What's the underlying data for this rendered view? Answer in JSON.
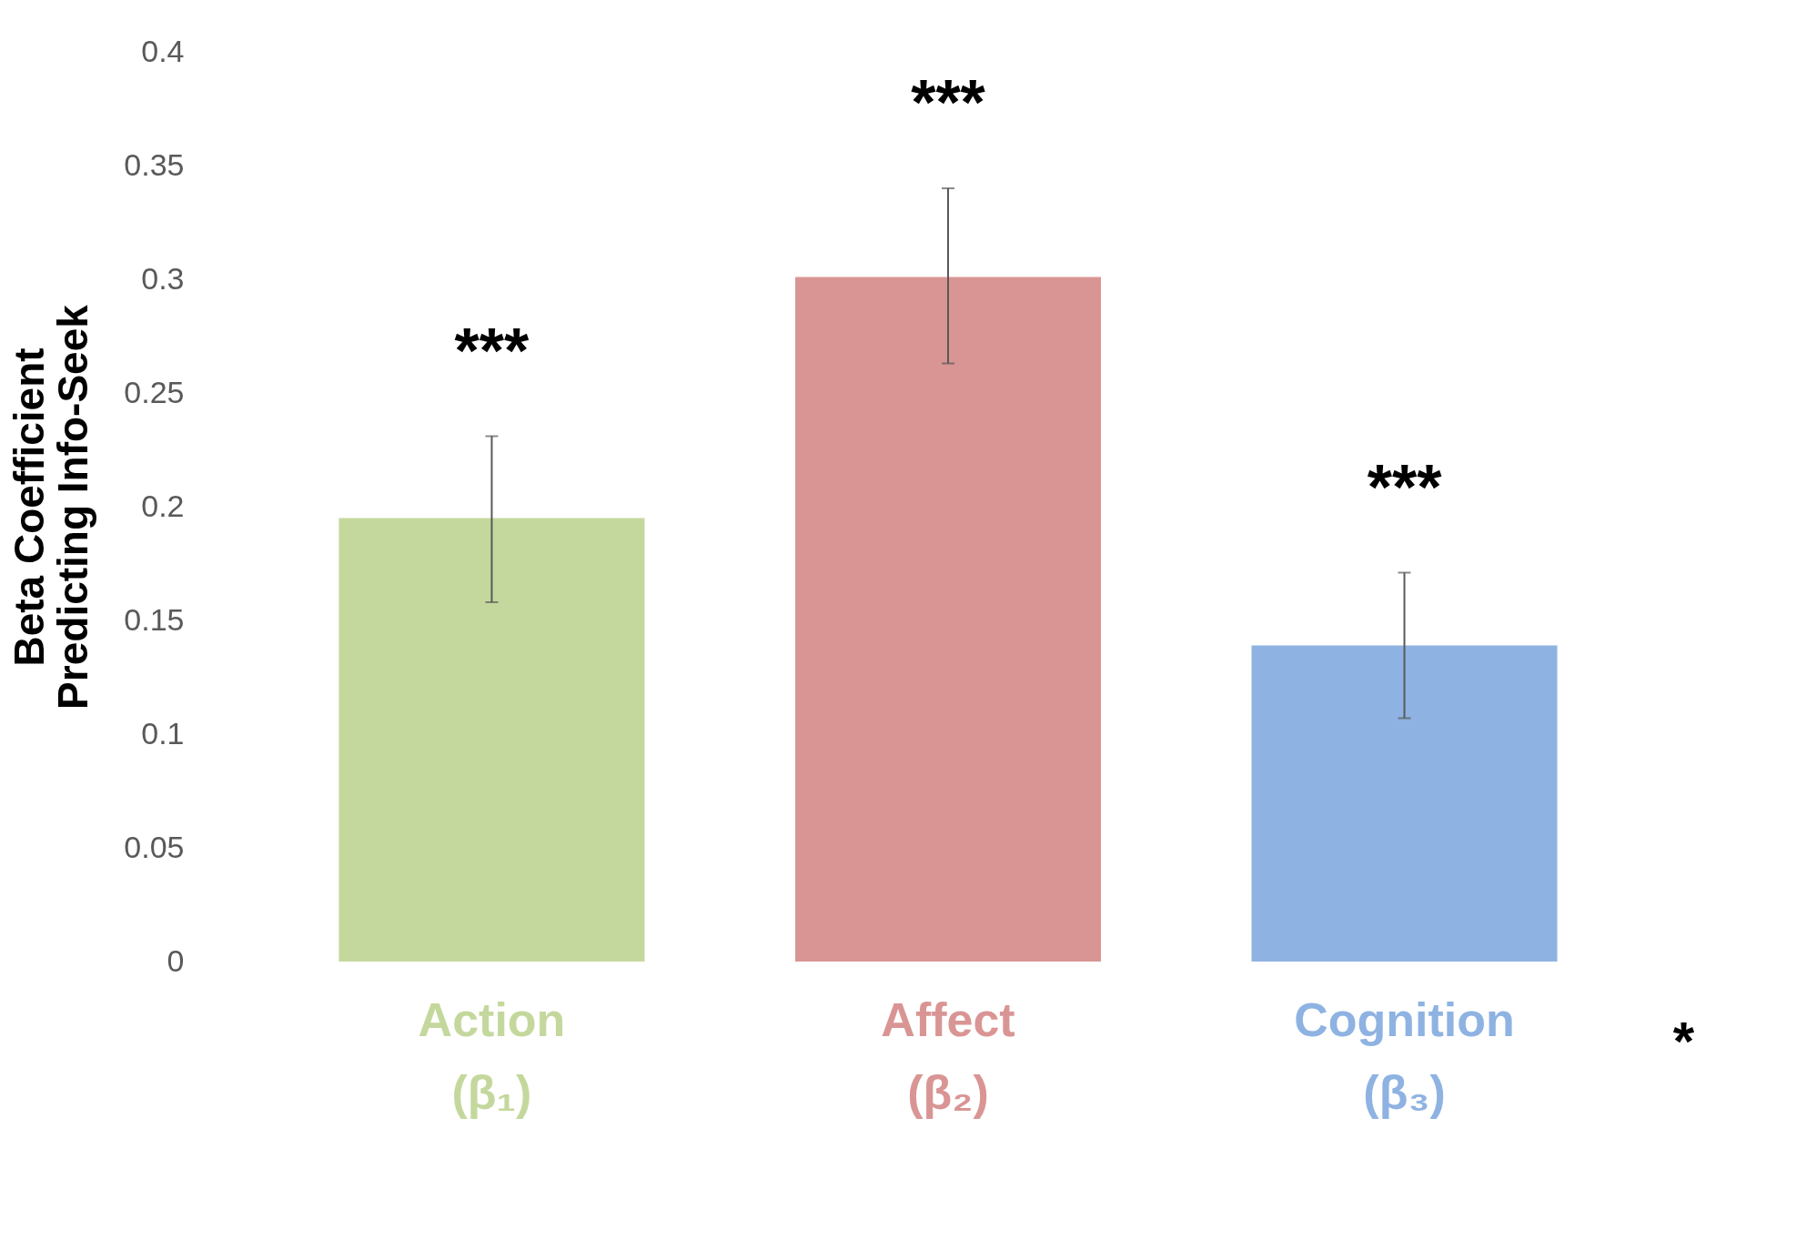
{
  "chart_data": {
    "type": "bar",
    "ylabel": "Beta Coefficient\nPredicting Info-Seek",
    "categories": [
      "Action\n(β₁)",
      "Affect\n(β₂)",
      "Cognition\n(β₃)"
    ],
    "values": [
      0.195,
      0.301,
      0.139
    ],
    "colors": [
      "#c4d89d",
      "#d99594",
      "#8eb3e2"
    ],
    "errors": [
      [
        0.158,
        0.231
      ],
      [
        0.263,
        0.34
      ],
      [
        0.107,
        0.171
      ]
    ],
    "ylim": [
      0,
      0.4
    ],
    "yticks": [
      0,
      0.05,
      0.1,
      0.15,
      0.2,
      0.25,
      0.3,
      0.35,
      0.4
    ],
    "grid": false,
    "annotations": [
      "***",
      "***",
      "***",
      "*"
    ]
  }
}
